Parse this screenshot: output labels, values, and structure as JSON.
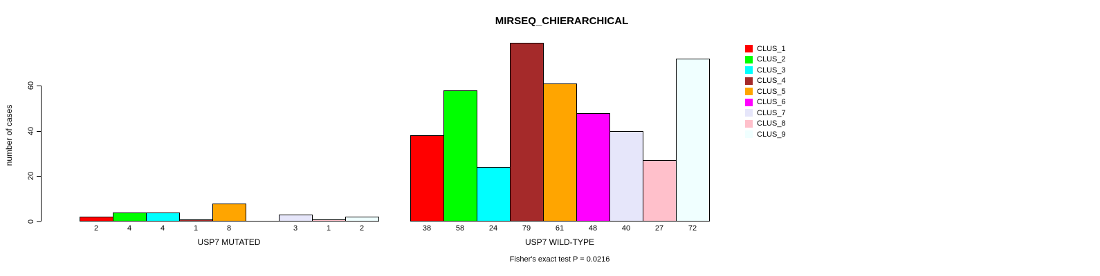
{
  "chart_data": {
    "type": "bar",
    "title": "MIRSEQ_CHIERARCHICAL",
    "ylabel": "number of cases",
    "xlabel": "",
    "yticks": [
      0,
      20,
      40,
      60
    ],
    "ylim": [
      0,
      79
    ],
    "grid": false,
    "legend_position": "right",
    "legend": [
      {
        "label": "CLUS_1",
        "color": "#FF0000"
      },
      {
        "label": "CLUS_2",
        "color": "#00FF00"
      },
      {
        "label": "CLUS_3",
        "color": "#00FFFF"
      },
      {
        "label": "CLUS_4",
        "color": "#A52A2A"
      },
      {
        "label": "CLUS_5",
        "color": "#FFA500"
      },
      {
        "label": "CLUS_6",
        "color": "#FF00FF"
      },
      {
        "label": "CLUS_7",
        "color": "#E6E6FA"
      },
      {
        "label": "CLUS_8",
        "color": "#FFC0CB"
      },
      {
        "label": "CLUS_9",
        "color": "#F0FFFF"
      }
    ],
    "groups": [
      {
        "label": "USP7 MUTATED",
        "values": [
          2,
          4,
          4,
          1,
          8,
          0,
          3,
          1,
          2
        ],
        "value_labels": [
          "2",
          "4",
          "4",
          "1",
          "8",
          "",
          "3",
          "1",
          "2"
        ]
      },
      {
        "label": "USP7 WILD-TYPE",
        "values": [
          38,
          58,
          24,
          79,
          61,
          48,
          40,
          27,
          72
        ],
        "value_labels": [
          "38",
          "58",
          "24",
          "79",
          "61",
          "48",
          "40",
          "27",
          "72"
        ]
      }
    ],
    "annotation": "Fisher's exact test P = 0.0216"
  }
}
